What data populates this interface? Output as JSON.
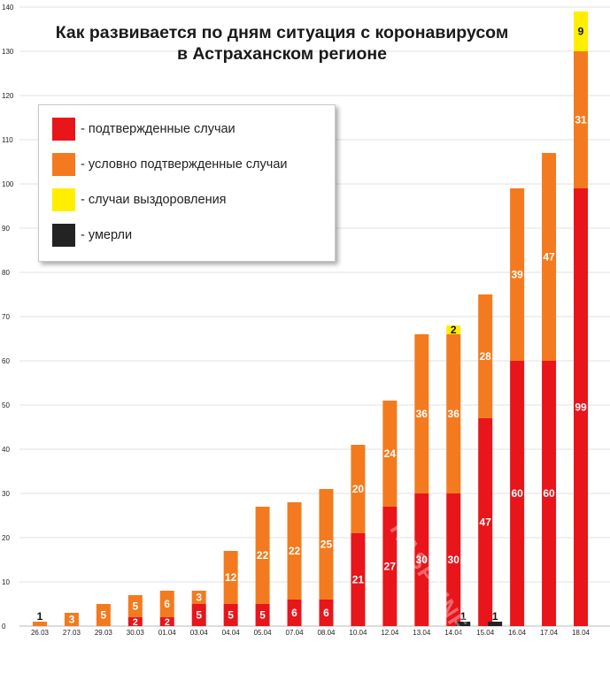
{
  "title": {
    "line1": "Как развивается по дням ситуация с коронавирусом",
    "line2": "в Астраханском регионе"
  },
  "legend": [
    {
      "label": "- подтвержденные случаи",
      "color": "#e8151b"
    },
    {
      "label": "- условно подтвержденные случаи",
      "color": "#f47a1f"
    },
    {
      "label": "- случаи выздоровления",
      "color": "#ffee00"
    },
    {
      "label": "- умерли",
      "color": "#232323"
    }
  ],
  "watermark": "KASPYINFO.RU",
  "chart_data": {
    "type": "bar",
    "stacked": true,
    "title": "Как развивается по дням ситуация с коронавирусом в Астраханском регионе",
    "xlabel": "",
    "ylabel": "",
    "ylim": [
      0,
      140
    ],
    "yticks": [
      0,
      10,
      20,
      30,
      40,
      50,
      60,
      70,
      80,
      90,
      100,
      110,
      120,
      130,
      140
    ],
    "grid": true,
    "legend_position": "top-left",
    "categories": [
      "26.03",
      "27.03",
      "29.03",
      "30.03",
      "01.04",
      "03.04",
      "04.04",
      "05.04",
      "07.04",
      "08.04",
      "10.04",
      "12.04",
      "13.04",
      "14.04",
      "15.04",
      "16.04",
      "17.04",
      "18.04"
    ],
    "series": [
      {
        "name": "подтвержденные случаи",
        "color": "#e8151b",
        "values": [
          0,
          0,
          0,
          2,
          2,
          5,
          5,
          5,
          6,
          6,
          21,
          27,
          30,
          30,
          47,
          60,
          60,
          99
        ]
      },
      {
        "name": "условно подтвержденные случаи",
        "color": "#f47a1f",
        "values": [
          1,
          3,
          5,
          5,
          6,
          3,
          12,
          22,
          22,
          25,
          20,
          24,
          36,
          36,
          28,
          39,
          47,
          31
        ]
      },
      {
        "name": "случаи выздоровления",
        "color": "#ffee00",
        "values": [
          0,
          0,
          0,
          0,
          0,
          0,
          0,
          0,
          0,
          0,
          0,
          0,
          0,
          2,
          0,
          0,
          0,
          9
        ]
      },
      {
        "name": "умерли",
        "color": "#232323",
        "values": [
          0,
          0,
          0,
          0,
          0,
          0,
          0,
          0,
          0,
          0,
          0,
          0,
          0,
          1,
          1,
          0,
          0,
          0
        ]
      }
    ],
    "data_labels": {
      "отдельные подписи": [
        {
          "category": "26.03",
          "text": "1"
        },
        {
          "category": "14.04",
          "text": "1"
        },
        {
          "category": "15.04",
          "text": "1"
        }
      ]
    }
  }
}
